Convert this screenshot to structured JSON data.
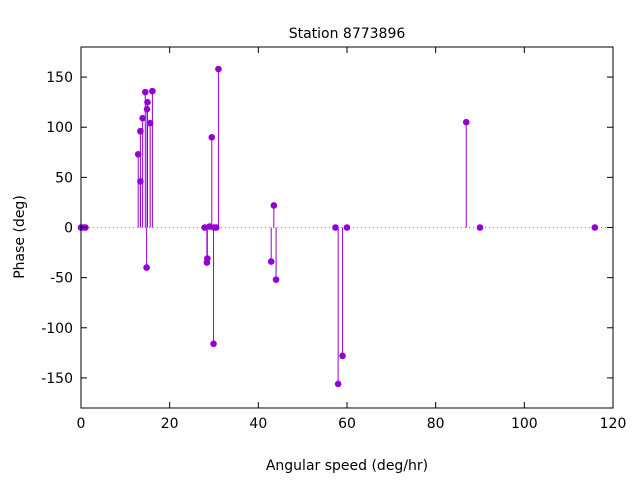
{
  "chart_data": {
    "type": "scatter",
    "style": "impulses-with-points",
    "title": "Station 8773896",
    "xlabel": "Angular speed (deg/hr)",
    "ylabel": "Phase (deg)",
    "xlim": [
      0,
      120
    ],
    "ylim": [
      -180,
      180
    ],
    "xticks": [
      0,
      20,
      40,
      60,
      80,
      100,
      120
    ],
    "yticks": [
      -150,
      -100,
      -50,
      0,
      50,
      100,
      150
    ],
    "grid": false,
    "legend": "none",
    "color": "#9400d3",
    "points": [
      {
        "x": 0.0,
        "y": 0
      },
      {
        "x": 0.5,
        "y": 0
      },
      {
        "x": 1.0,
        "y": 0
      },
      {
        "x": 12.9,
        "y": 73
      },
      {
        "x": 13.4,
        "y": 46
      },
      {
        "x": 13.4,
        "y": 96
      },
      {
        "x": 13.9,
        "y": 109
      },
      {
        "x": 14.5,
        "y": 135
      },
      {
        "x": 14.8,
        "y": -40
      },
      {
        "x": 14.9,
        "y": 118
      },
      {
        "x": 15.0,
        "y": 125
      },
      {
        "x": 15.6,
        "y": 104
      },
      {
        "x": 16.1,
        "y": 136
      },
      {
        "x": 27.9,
        "y": 0
      },
      {
        "x": 28.4,
        "y": -35
      },
      {
        "x": 28.5,
        "y": -31
      },
      {
        "x": 29.0,
        "y": 1
      },
      {
        "x": 29.5,
        "y": 90
      },
      {
        "x": 29.9,
        "y": -116
      },
      {
        "x": 30.0,
        "y": 0
      },
      {
        "x": 30.5,
        "y": 0
      },
      {
        "x": 31.0,
        "y": 158
      },
      {
        "x": 42.9,
        "y": -34
      },
      {
        "x": 43.5,
        "y": 22
      },
      {
        "x": 44.0,
        "y": -52
      },
      {
        "x": 57.4,
        "y": 0
      },
      {
        "x": 58.0,
        "y": -156
      },
      {
        "x": 59.0,
        "y": -128
      },
      {
        "x": 60.0,
        "y": 0
      },
      {
        "x": 86.9,
        "y": 105
      },
      {
        "x": 90.0,
        "y": 0
      },
      {
        "x": 115.9,
        "y": 0
      }
    ]
  }
}
